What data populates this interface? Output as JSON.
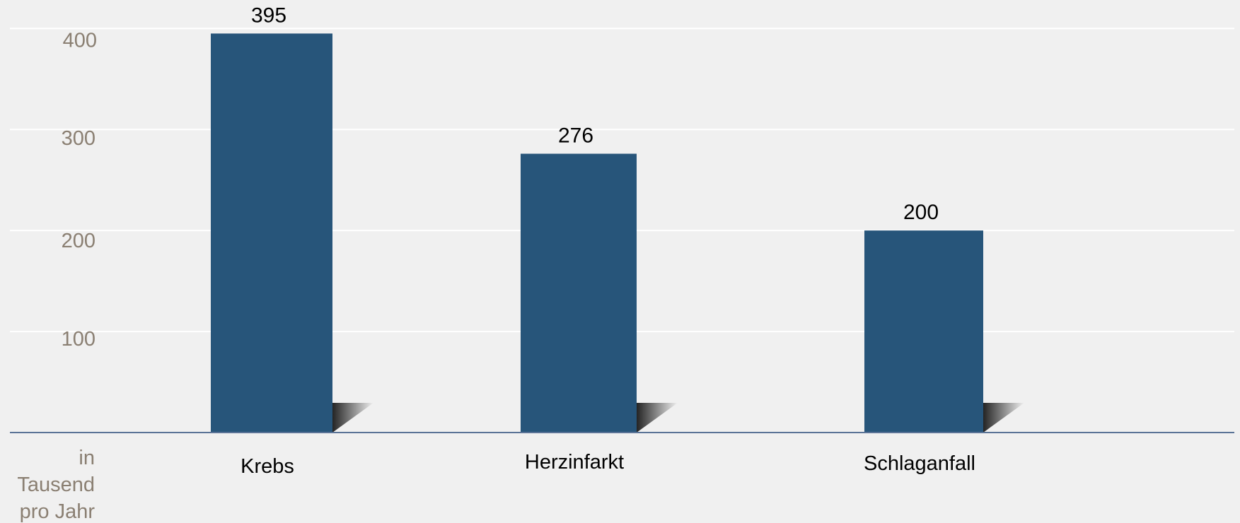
{
  "chart_data": {
    "type": "bar",
    "categories": [
      "Krebs",
      "Herzinfarkt",
      "Schlaganfall"
    ],
    "values": [
      395,
      276,
      200
    ],
    "value_labels": [
      "395",
      "276",
      "200"
    ],
    "title": "",
    "xlabel": "",
    "ylabel": "",
    "y_ticks": [
      "100",
      "200",
      "300",
      "400"
    ],
    "ylim": [
      0,
      410
    ],
    "unit_label": [
      "in",
      "Tausend",
      "pro Jahr"
    ],
    "grid": true,
    "legend": "none",
    "colors": {
      "bar": "#27557a",
      "axis": "#5a7396",
      "grid": "#ffffff",
      "tick_text": "#8a7f72",
      "background": "#f0f0f0"
    }
  }
}
